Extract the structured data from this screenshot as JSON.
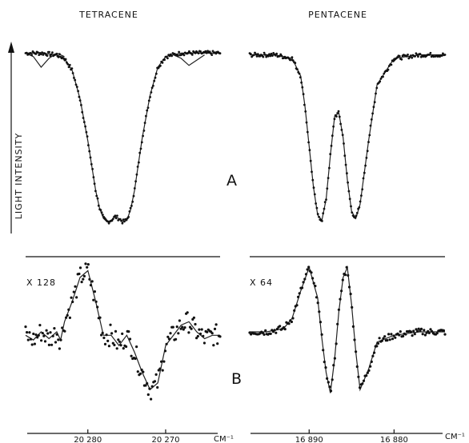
{
  "panels": {
    "left_title": "TETRACENE",
    "right_title": "PENTACENE",
    "row_label_a": "A",
    "row_label_b": "B",
    "left_multiplier": "X 128",
    "right_multiplier": "X 64",
    "y_axis_label": "LIGHT INTENSITY",
    "x_unit_left": "CM⁻¹",
    "x_unit_right": "CM⁻¹"
  },
  "chart_data": [
    {
      "id": "tetracene-A",
      "type": "line",
      "title": "TETRACENE",
      "ylabel": "LIGHT INTENSITY",
      "xlim": [
        20288,
        20263
      ],
      "ylim": [
        0,
        1
      ],
      "grid": false,
      "series": [
        {
          "kind": "fit",
          "x": [
            20288,
            20286,
            20284,
            20283,
            20282,
            20281,
            20280,
            20279.5,
            20279,
            20278.5,
            20278,
            20277.5,
            20277,
            20276.5,
            20276,
            20275.5,
            20275,
            20274.5,
            20274,
            20273.5,
            20273,
            20272,
            20271,
            20270,
            20268,
            20266,
            20263
          ],
          "y": [
            0.98,
            0.98,
            0.97,
            0.95,
            0.88,
            0.72,
            0.48,
            0.34,
            0.2,
            0.1,
            0.04,
            0.02,
            0.03,
            0.05,
            0.04,
            0.02,
            0.03,
            0.09,
            0.2,
            0.35,
            0.5,
            0.74,
            0.9,
            0.96,
            0.98,
            0.98,
            0.98
          ]
        },
        {
          "kind": "fit-alt",
          "x": [
            20288,
            20287,
            20286,
            20285,
            20284,
            20283
          ],
          "y": [
            0.98,
            0.96,
            0.9,
            0.95,
            0.98,
            0.96
          ]
        },
        {
          "kind": "fit-alt",
          "x": [
            20269,
            20268,
            20267,
            20266,
            20265
          ],
          "y": [
            0.97,
            0.95,
            0.91,
            0.94,
            0.97
          ]
        }
      ]
    },
    {
      "id": "pentacene-A",
      "type": "line",
      "title": "PENTACENE",
      "xlim": [
        16897,
        16874
      ],
      "ylim": [
        0,
        1
      ],
      "grid": false,
      "series": [
        {
          "kind": "fit",
          "x": [
            16897,
            16894,
            16892,
            16891,
            16890.5,
            16890,
            16889.5,
            16889,
            16888.5,
            16888,
            16887.5,
            16887,
            16886.5,
            16886,
            16885.5,
            16885,
            16884.5,
            16884,
            16883,
            16882,
            16880,
            16877,
            16874
          ],
          "y": [
            0.97,
            0.97,
            0.95,
            0.85,
            0.68,
            0.45,
            0.22,
            0.06,
            0.03,
            0.15,
            0.4,
            0.62,
            0.64,
            0.5,
            0.26,
            0.08,
            0.04,
            0.12,
            0.48,
            0.8,
            0.95,
            0.97,
            0.97
          ]
        }
      ]
    },
    {
      "id": "tetracene-B",
      "type": "line",
      "title": "",
      "xlabel": "CM⁻¹",
      "xlim": [
        20288,
        20263
      ],
      "ylim": [
        -1,
        1
      ],
      "x_ticks": [
        {
          "value": 20280,
          "label": "20 280"
        },
        {
          "value": 20270,
          "label": "20 270"
        }
      ],
      "grid": false,
      "series": [
        {
          "kind": "fit",
          "x": [
            20288,
            20287,
            20286,
            20285,
            20284,
            20283.5,
            20283,
            20282,
            20281,
            20280,
            20279,
            20278,
            20277,
            20276,
            20275,
            20274,
            20273,
            20272,
            20271,
            20270,
            20269,
            20268,
            20267,
            20266,
            20265,
            20264,
            20263
          ],
          "y": [
            -0.05,
            -0.12,
            0.0,
            -0.1,
            0.0,
            -0.12,
            0.15,
            0.45,
            0.8,
            0.9,
            0.45,
            -0.05,
            -0.05,
            -0.2,
            -0.05,
            -0.3,
            -0.6,
            -0.85,
            -0.75,
            -0.2,
            -0.05,
            0.1,
            0.15,
            0.0,
            -0.1,
            -0.05,
            -0.05
          ]
        }
      ]
    },
    {
      "id": "pentacene-B",
      "type": "line",
      "title": "",
      "xlabel": "CM⁻¹",
      "xlim": [
        16897,
        16874
      ],
      "ylim": [
        -1,
        1
      ],
      "x_ticks": [
        {
          "value": 16890,
          "label": "16 890"
        },
        {
          "value": 16880,
          "label": "16 880"
        }
      ],
      "grid": false,
      "series": [
        {
          "kind": "fit",
          "x": [
            16897,
            16895,
            16893,
            16892,
            16891,
            16890,
            16889,
            16888.5,
            16888,
            16887.5,
            16887,
            16886.5,
            16886,
            16885.5,
            16885,
            16884.5,
            16884,
            16883,
            16882,
            16880,
            16877,
            16874
          ],
          "y": [
            0.0,
            0.0,
            0.05,
            0.2,
            0.6,
            0.95,
            0.5,
            -0.1,
            -0.6,
            -0.9,
            -0.4,
            0.3,
            0.8,
            0.95,
            0.4,
            -0.3,
            -0.85,
            -0.55,
            -0.15,
            -0.05,
            0.0,
            0.0
          ]
        }
      ]
    }
  ]
}
